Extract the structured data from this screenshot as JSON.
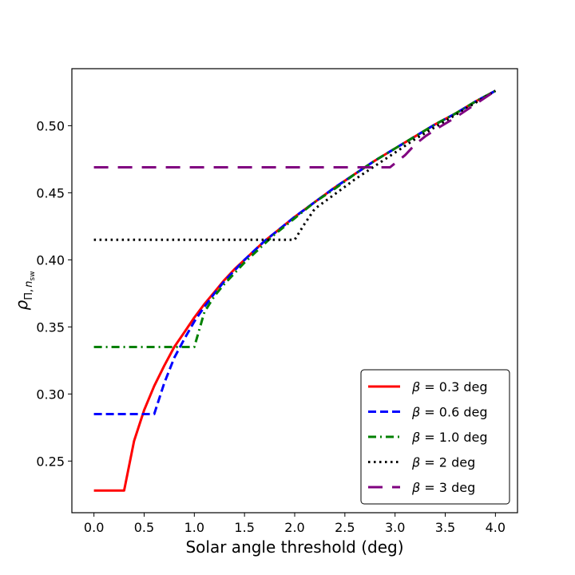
{
  "chart_data": {
    "type": "line",
    "xlabel": "Solar angle threshold (deg)",
    "ylabel_parts": {
      "rho": "ρ",
      "sub_pi": "Π,",
      "sub_n": "n",
      "sub_sw": "sw"
    },
    "xlim": [
      -0.22,
      4.22
    ],
    "ylim": [
      0.2115,
      0.5425
    ],
    "xticks": [
      0.0,
      0.5,
      1.0,
      1.5,
      2.0,
      2.5,
      3.0,
      3.5,
      4.0
    ],
    "xtick_labels": [
      "0.0",
      "0.5",
      "1.0",
      "1.5",
      "2.0",
      "2.5",
      "3.0",
      "3.5",
      "4.0"
    ],
    "yticks": [
      0.25,
      0.3,
      0.35,
      0.4,
      0.45,
      0.5
    ],
    "ytick_labels": [
      "0.25",
      "0.30",
      "0.35",
      "0.40",
      "0.45",
      "0.50"
    ],
    "grid": false,
    "legend": "lower-right",
    "series": [
      {
        "name": "β = 0.3 deg",
        "legend_label": {
          "symbol": "β",
          "rest": " = 0.3 deg"
        },
        "color": "#ff0000",
        "style": "solid",
        "x": [
          0.0,
          0.3,
          0.4,
          0.5,
          0.6,
          0.7,
          0.8,
          0.9,
          1.0,
          1.1,
          1.2,
          1.3,
          1.4,
          1.5,
          1.6,
          1.7,
          1.8,
          1.9,
          2.0,
          2.2,
          2.4,
          2.6,
          2.8,
          3.0,
          3.2,
          3.4,
          3.6,
          3.8,
          4.0
        ],
        "y": [
          0.228,
          0.228,
          0.265,
          0.288,
          0.306,
          0.321,
          0.335,
          0.346,
          0.357,
          0.367,
          0.376,
          0.385,
          0.393,
          0.4,
          0.407,
          0.414,
          0.42,
          0.426,
          0.432,
          0.443,
          0.454,
          0.464,
          0.474,
          0.483,
          0.492,
          0.501,
          0.509,
          0.518,
          0.526
        ]
      },
      {
        "name": "β = 0.6 deg",
        "legend_label": {
          "symbol": "β",
          "rest": " = 0.6 deg"
        },
        "color": "#0000ff",
        "style": "dashed",
        "x": [
          0.0,
          0.6,
          0.7,
          0.8,
          0.9,
          1.0,
          1.1,
          1.2,
          1.3,
          1.4,
          1.5,
          1.6,
          1.7,
          1.8,
          1.9,
          2.0,
          2.2,
          2.4,
          2.6,
          2.8,
          3.0,
          3.2,
          3.4,
          3.6,
          3.8,
          4.0
        ],
        "y": [
          0.285,
          0.285,
          0.308,
          0.327,
          0.341,
          0.354,
          0.365,
          0.375,
          0.384,
          0.392,
          0.4,
          0.407,
          0.414,
          0.42,
          0.426,
          0.432,
          0.443,
          0.454,
          0.464,
          0.474,
          0.483,
          0.492,
          0.501,
          0.509,
          0.518,
          0.526
        ]
      },
      {
        "name": "β = 1.0 deg",
        "legend_label": {
          "symbol": "β",
          "rest": " = 1.0 deg"
        },
        "color": "#008000",
        "style": "dashdot",
        "x": [
          0.0,
          1.0,
          1.1,
          1.2,
          1.3,
          1.4,
          1.5,
          1.6,
          1.7,
          1.8,
          1.9,
          2.0,
          2.2,
          2.4,
          2.6,
          2.8,
          3.0,
          3.2,
          3.4,
          3.6,
          3.8,
          4.0
        ],
        "y": [
          0.335,
          0.335,
          0.361,
          0.373,
          0.382,
          0.39,
          0.398,
          0.405,
          0.412,
          0.419,
          0.425,
          0.431,
          0.443,
          0.453,
          0.464,
          0.474,
          0.483,
          0.492,
          0.501,
          0.509,
          0.518,
          0.526
        ]
      },
      {
        "name": "β = 2 deg",
        "legend_label": {
          "symbol": "β",
          "rest": " = 2 deg"
        },
        "color": "#000000",
        "style": "dotted",
        "x": [
          0.0,
          2.0,
          2.1,
          2.2,
          2.4,
          2.6,
          2.8,
          3.0,
          3.2,
          3.4,
          3.6,
          3.8,
          4.0
        ],
        "y": [
          0.415,
          0.415,
          0.427,
          0.438,
          0.449,
          0.46,
          0.47,
          0.48,
          0.49,
          0.499,
          0.508,
          0.517,
          0.526
        ]
      },
      {
        "name": "β = 3 deg",
        "legend_label": {
          "symbol": "β",
          "rest": " = 3 deg"
        },
        "color": "#800080",
        "style": "longdash",
        "x": [
          0.0,
          2.95,
          3.1,
          3.2,
          3.3,
          3.4,
          3.6,
          3.8,
          4.0
        ],
        "y": [
          0.469,
          0.469,
          0.478,
          0.486,
          0.492,
          0.497,
          0.506,
          0.516,
          0.526
        ]
      }
    ]
  }
}
